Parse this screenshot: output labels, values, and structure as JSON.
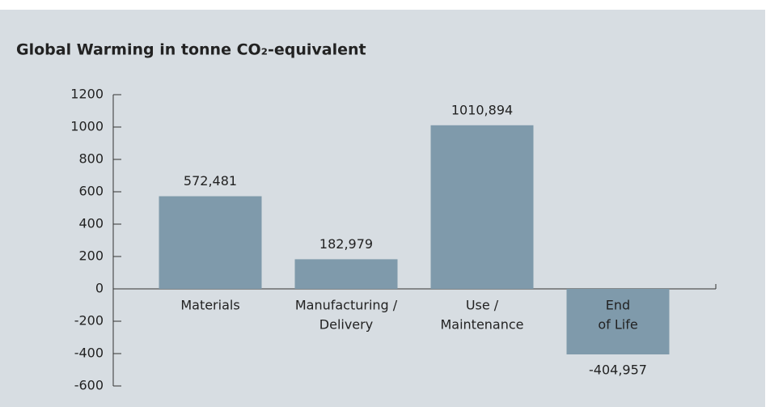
{
  "chart_data": {
    "type": "bar",
    "title": "Global Warming in tonne CO₂-equivalent",
    "categories": [
      [
        "Materials"
      ],
      [
        "Manufacturing /",
        "Delivery"
      ],
      [
        "Use /",
        "Maintenance"
      ],
      [
        "End",
        "of Life"
      ]
    ],
    "values": [
      572.481,
      182.979,
      1010.894,
      -404.957
    ],
    "value_labels": [
      "572,481",
      "182,979",
      "1010,894",
      "-404,957"
    ],
    "color": "#7f9aab",
    "ylim": [
      -600,
      1200
    ],
    "yticks": [
      -600,
      -400,
      -200,
      0,
      200,
      400,
      600,
      800,
      1000,
      1200
    ]
  }
}
